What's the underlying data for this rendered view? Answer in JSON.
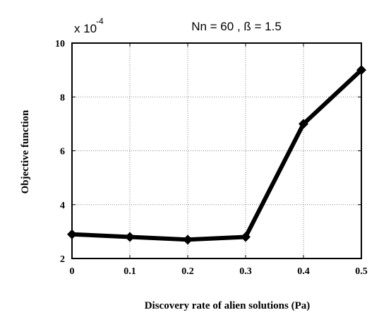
{
  "chart_data": {
    "type": "line",
    "title": "Nn = 60 ,  ß = 1.5",
    "xlabel": "Discovery rate of alien solutions (Pa)",
    "ylabel": "Objective function",
    "y_multiplier": {
      "base": "x 10",
      "exponent": "-4"
    },
    "x": [
      0,
      0.1,
      0.2,
      0.3,
      0.4,
      0.5
    ],
    "series": [
      {
        "values": [
          2.9,
          2.8,
          2.7,
          2.8,
          7.0,
          9.0
        ]
      }
    ],
    "xlim": [
      0,
      0.5
    ],
    "ylim": [
      2,
      10
    ],
    "xticks": [
      0,
      0.1,
      0.2,
      0.3,
      0.4,
      0.5
    ],
    "xtick_labels": [
      "0",
      "0.1",
      "0.2",
      "0.3",
      "0.4",
      "0.5"
    ],
    "yticks": [
      2,
      4,
      6,
      8,
      10
    ],
    "ytick_labels": [
      "2",
      "4",
      "6",
      "8",
      "10"
    ],
    "grid": true,
    "marker": "diamond",
    "line_color": "#000000"
  }
}
